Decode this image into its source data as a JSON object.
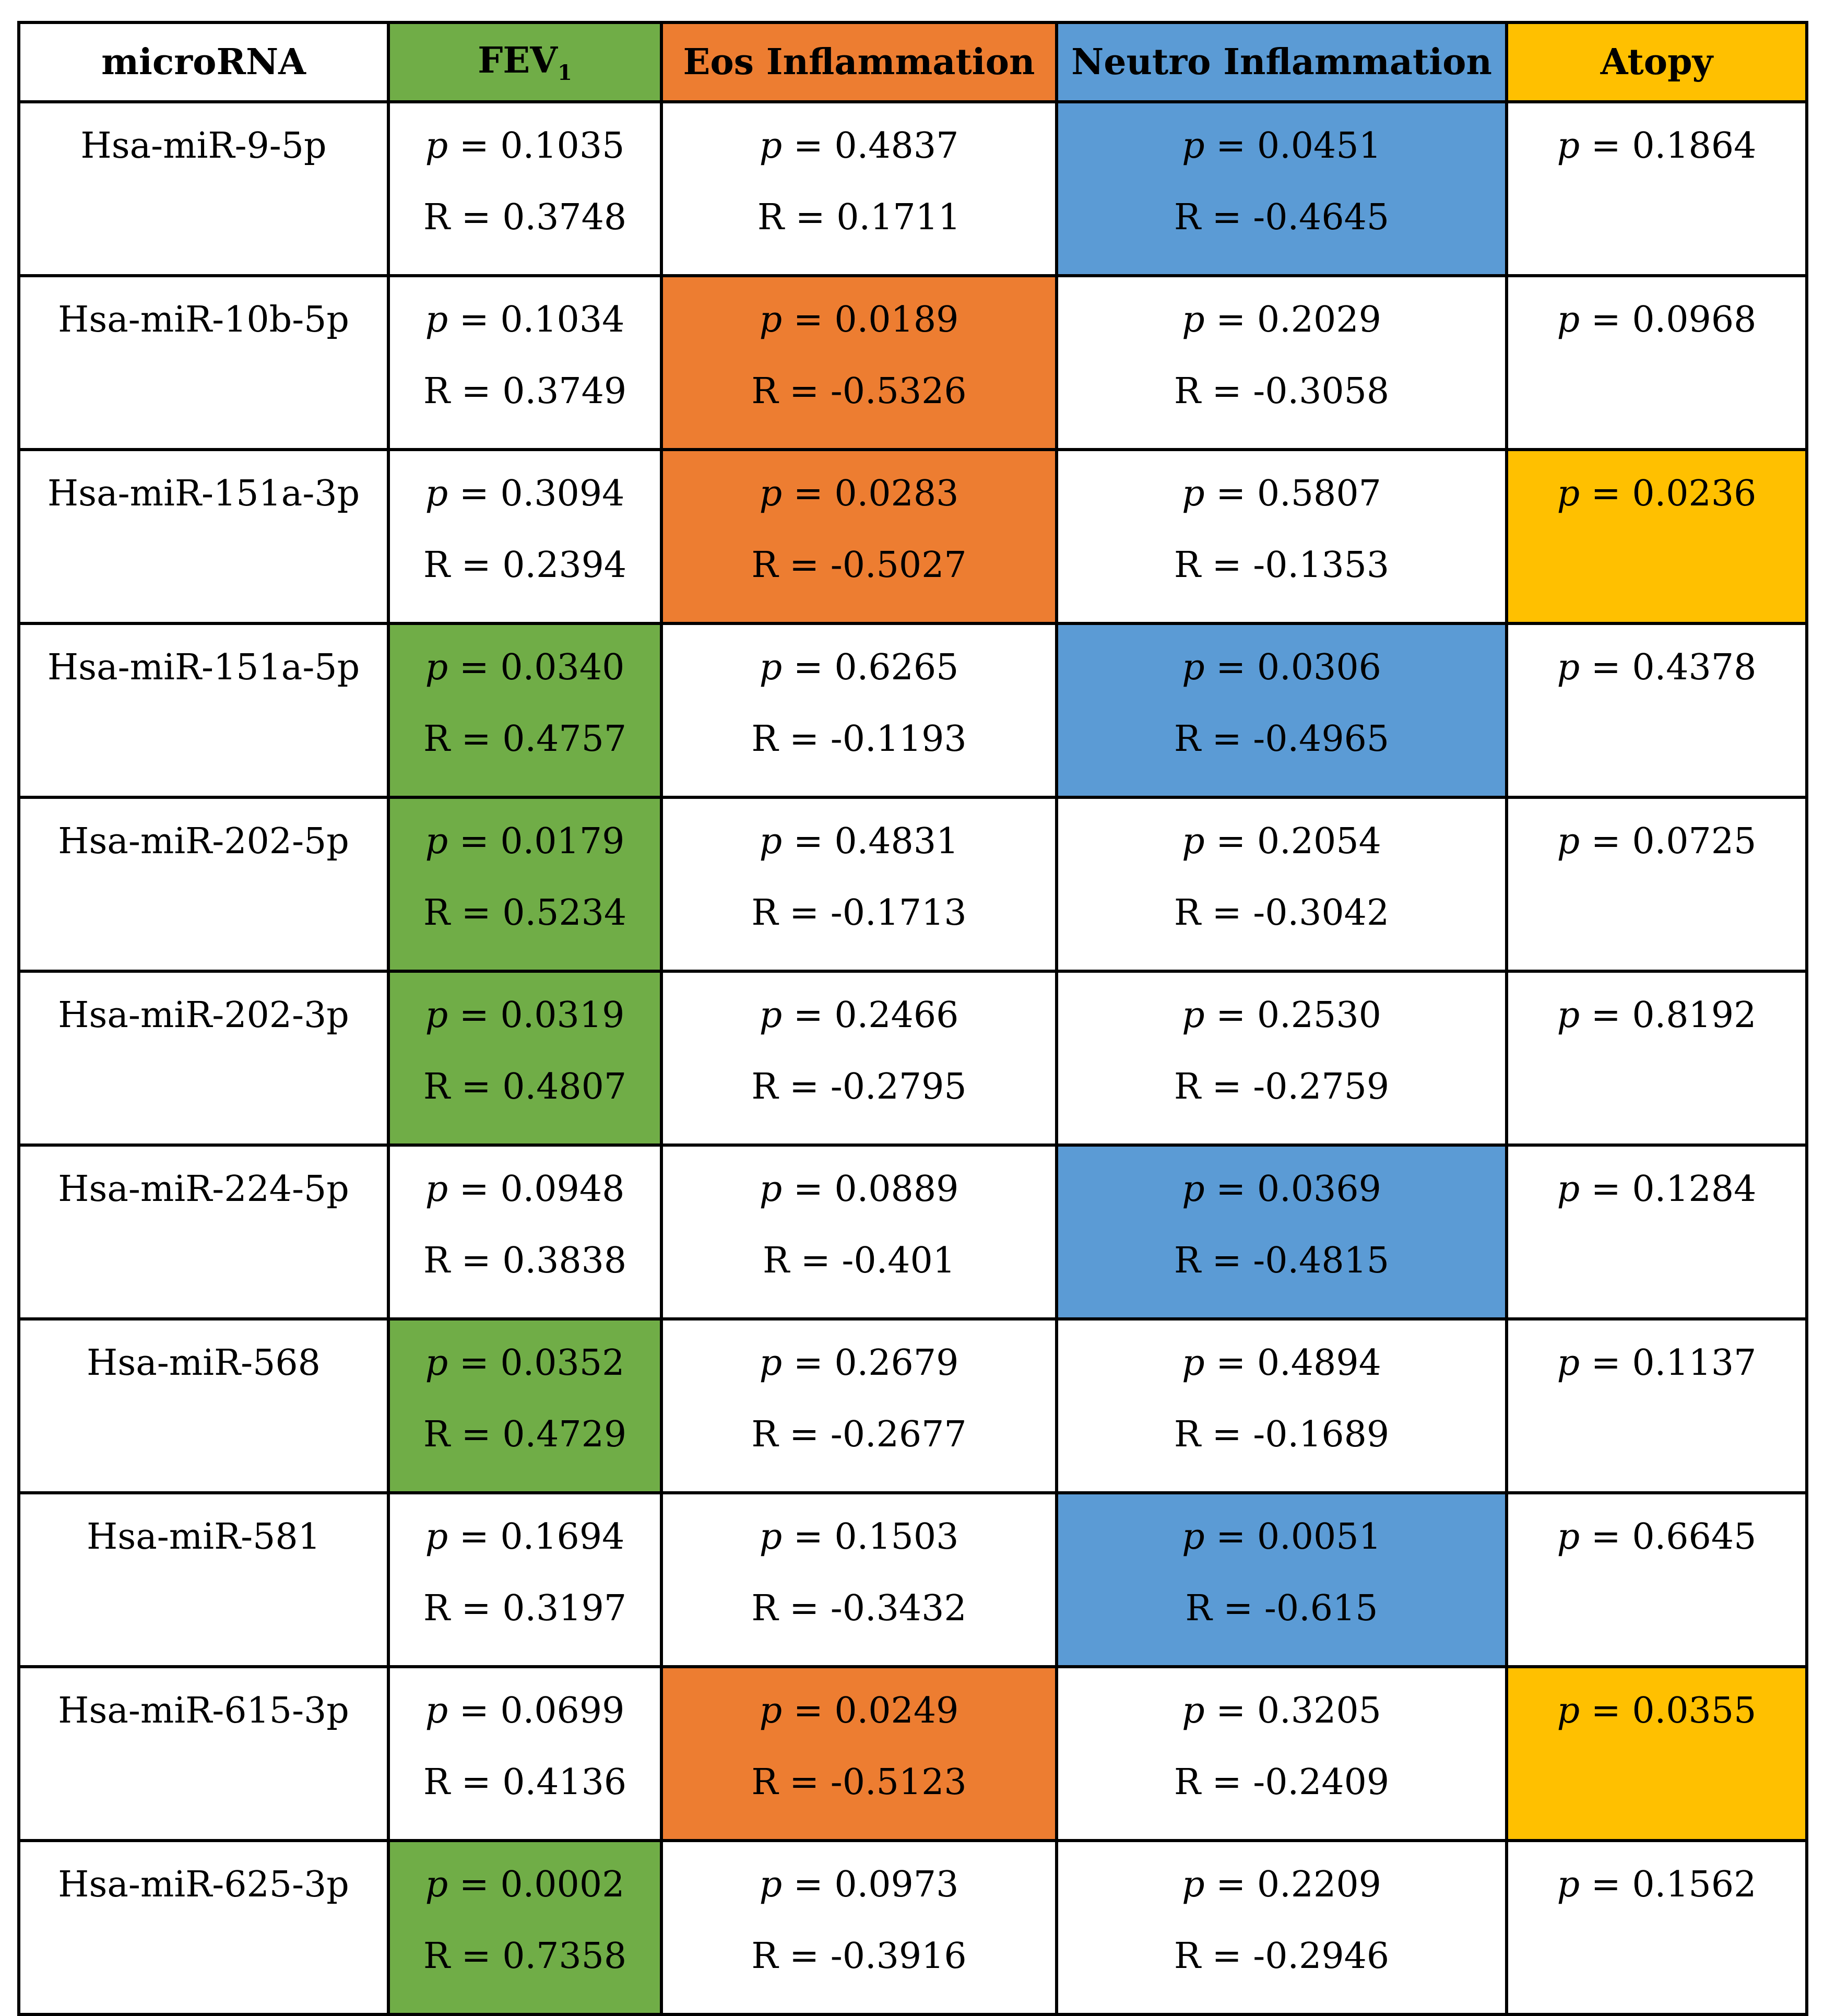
{
  "table": {
    "headers": [
      {
        "label": "microRNA",
        "sub": "",
        "color": "#FFFFFF"
      },
      {
        "label": "FEV",
        "sub": "1",
        "color": "#70AD47"
      },
      {
        "label": "Eos Inflammation",
        "sub": "",
        "color": "#ED7D31"
      },
      {
        "label": "Neutro Inflammation",
        "sub": "",
        "color": "#5B9BD5"
      },
      {
        "label": "Atopy",
        "sub": "",
        "color": "#FFC000"
      }
    ],
    "p_symbol": "p",
    "p_equals": " = ",
    "r_prefix": "R = ",
    "rows": [
      {
        "mirna": "Hsa-miR-9-5p",
        "cells": [
          {
            "p": "0.1035",
            "r": "0.3748",
            "highlight": false
          },
          {
            "p": "0.4837",
            "r": "0.1711",
            "highlight": false
          },
          {
            "p": "0.0451",
            "r": "-0.4645",
            "highlight": true
          },
          {
            "p": "0.1864",
            "r": "",
            "highlight": false
          }
        ]
      },
      {
        "mirna": "Hsa-miR-10b-5p",
        "cells": [
          {
            "p": "0.1034",
            "r": "0.3749",
            "highlight": false
          },
          {
            "p": "0.0189",
            "r": "-0.5326",
            "highlight": true
          },
          {
            "p": "0.2029",
            "r": "-0.3058",
            "highlight": false
          },
          {
            "p": "0.0968",
            "r": "",
            "highlight": false
          }
        ]
      },
      {
        "mirna": "Hsa-miR-151a-3p",
        "cells": [
          {
            "p": "0.3094",
            "r": "0.2394",
            "highlight": false
          },
          {
            "p": "0.0283",
            "r": "-0.5027",
            "highlight": true
          },
          {
            "p": "0.5807",
            "r": "-0.1353",
            "highlight": false
          },
          {
            "p": "0.0236",
            "r": "",
            "highlight": true
          }
        ]
      },
      {
        "mirna": "Hsa-miR-151a-5p",
        "cells": [
          {
            "p": "0.0340",
            "r": "0.4757",
            "highlight": true
          },
          {
            "p": "0.6265",
            "r": "-0.1193",
            "highlight": false
          },
          {
            "p": "0.0306",
            "r": "-0.4965",
            "highlight": true
          },
          {
            "p": "0.4378",
            "r": "",
            "highlight": false
          }
        ]
      },
      {
        "mirna": "Hsa-miR-202-5p",
        "cells": [
          {
            "p": "0.0179",
            "r": "0.5234",
            "highlight": true
          },
          {
            "p": "0.4831",
            "r": "-0.1713",
            "highlight": false
          },
          {
            "p": "0.2054",
            "r": "-0.3042",
            "highlight": false
          },
          {
            "p": "0.0725",
            "r": "",
            "highlight": false
          }
        ]
      },
      {
        "mirna": "Hsa-miR-202-3p",
        "cells": [
          {
            "p": "0.0319",
            "r": "0.4807",
            "highlight": true
          },
          {
            "p": "0.2466",
            "r": "-0.2795",
            "highlight": false
          },
          {
            "p": "0.2530",
            "r": "-0.2759",
            "highlight": false
          },
          {
            "p": "0.8192",
            "r": "",
            "highlight": false
          }
        ]
      },
      {
        "mirna": "Hsa-miR-224-5p",
        "cells": [
          {
            "p": "0.0948",
            "r": "0.3838",
            "highlight": false
          },
          {
            "p": "0.0889",
            "r": "-0.401",
            "highlight": false
          },
          {
            "p": "0.0369",
            "r": "-0.4815",
            "highlight": true
          },
          {
            "p": "0.1284",
            "r": "",
            "highlight": false
          }
        ]
      },
      {
        "mirna": "Hsa-miR-568",
        "cells": [
          {
            "p": "0.0352",
            "r": "0.4729",
            "highlight": true
          },
          {
            "p": "0.2679",
            "r": "-0.2677",
            "highlight": false
          },
          {
            "p": "0.4894",
            "r": "-0.1689",
            "highlight": false
          },
          {
            "p": "0.1137",
            "r": "",
            "highlight": false
          }
        ]
      },
      {
        "mirna": "Hsa-miR-581",
        "cells": [
          {
            "p": "0.1694",
            "r": "0.3197",
            "highlight": false
          },
          {
            "p": "0.1503",
            "r": "-0.3432",
            "highlight": false
          },
          {
            "p": "0.0051",
            "r": "-0.615",
            "highlight": true
          },
          {
            "p": "0.6645",
            "r": "",
            "highlight": false
          }
        ]
      },
      {
        "mirna": "Hsa-miR-615-3p",
        "cells": [
          {
            "p": "0.0699",
            "r": "0.4136",
            "highlight": false
          },
          {
            "p": "0.0249",
            "r": "-0.5123",
            "highlight": true
          },
          {
            "p": "0.3205",
            "r": "-0.2409",
            "highlight": false
          },
          {
            "p": "0.0355",
            "r": "",
            "highlight": true
          }
        ]
      },
      {
        "mirna": "Hsa-miR-625-3p",
        "cells": [
          {
            "p": "0.0002",
            "r": "0.7358",
            "highlight": true
          },
          {
            "p": "0.0973",
            "r": "-0.3916",
            "highlight": false
          },
          {
            "p": "0.2209",
            "r": "-0.2946",
            "highlight": false
          },
          {
            "p": "0.1562",
            "r": "",
            "highlight": false
          }
        ]
      }
    ]
  }
}
